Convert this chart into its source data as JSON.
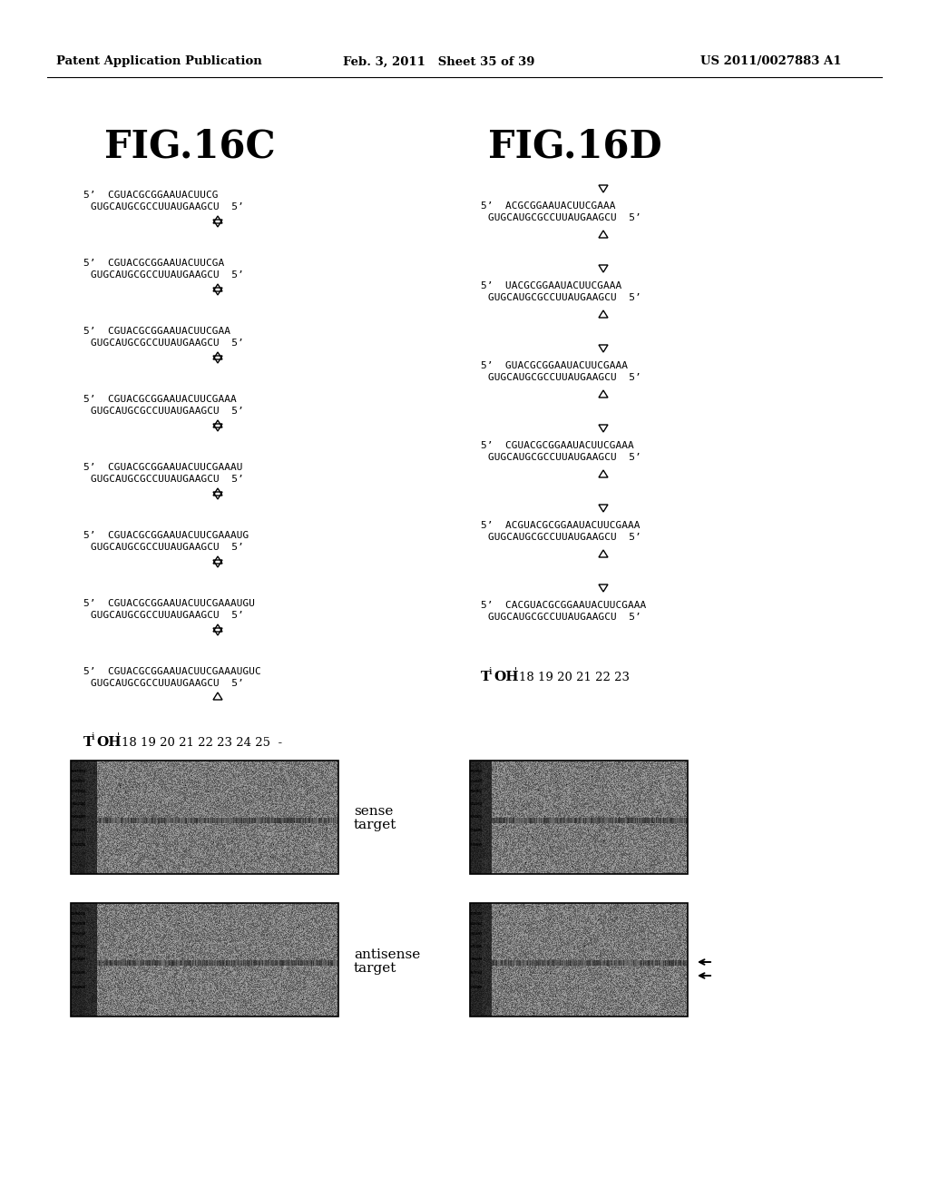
{
  "header_left": "Patent Application Publication",
  "header_mid": "Feb. 3, 2011   Sheet 35 of 39",
  "header_right": "US 2011/0027883 A1",
  "fig16c_title": "FIG.16C",
  "fig16d_title": "FIG.16D",
  "fig16c_sequences": [
    [
      "5’  CGUACGCGGAAUACUUCG",
      "GUGCAUGCGCCUUAUGAAGCU  5’"
    ],
    [
      "5’  CGUACGCGGAAUACUUCGA",
      "GUGCAUGCGCCUUAUGAAGCU  5’"
    ],
    [
      "5’  CGUACGCGGAAUACUUCGAA",
      "GUGCAUGCGCCUUAUGAAGCU  5’"
    ],
    [
      "5’  CGUACGCGGAAUACUUCGAAA",
      "GUGCAUGCGCCUUAUGAAGCU  5’"
    ],
    [
      "5’  CGUACGCGGAAUACUUCGAAAU",
      "GUGCAUGCGCCUUAUGAAGCU  5’"
    ],
    [
      "5’  CGUACGCGGAAUACUUCGAAAUG",
      "GUGCAUGCGCCUUAUGAAGCU  5’"
    ],
    [
      "5’  CGUACGCGGAAUACUUCGAAAUGU",
      "GUGCAUGCGCCUUAUGAAGCU  5’"
    ],
    [
      "5’  CGUACGCGGAAUACUUCGAAAUGUC",
      "GUGCAUGCGCCUUAUGAAGCU  5’"
    ]
  ],
  "fig16d_sequences": [
    [
      "5’  ACGCGGAAUACUUCGAAA",
      "GUGCAUGCGCCUUAUGAAGCU  5’"
    ],
    [
      "5’  UACGCGGAAUACUUCGAAA",
      "GUGCAUGCGCCUUAUGAAGCU  5’"
    ],
    [
      "5’  GUACGCGGAAUACUUCGAAA",
      "GUGCAUGCGCCUUAUGAAGCU  5’"
    ],
    [
      "5’  CGUACGCGGAAUACUUCGAAA",
      "GUGCAUGCGCCUUAUGAAGCU  5’"
    ],
    [
      "5’  ACGUACGCGGAAUACUUCGAAA",
      "GUGCAUGCGCCUUAUGAAGCU  5’"
    ],
    [
      "5’  CACGUACGCGGAAUACUUCGAAA",
      "GUGCAUGCGCCUUAUGAAGCU  5’"
    ]
  ],
  "bg_color": "#ffffff",
  "text_color": "#000000",
  "seq_fontsize": 8.0,
  "title_fontsize": 30,
  "header_fontsize": 9.5
}
